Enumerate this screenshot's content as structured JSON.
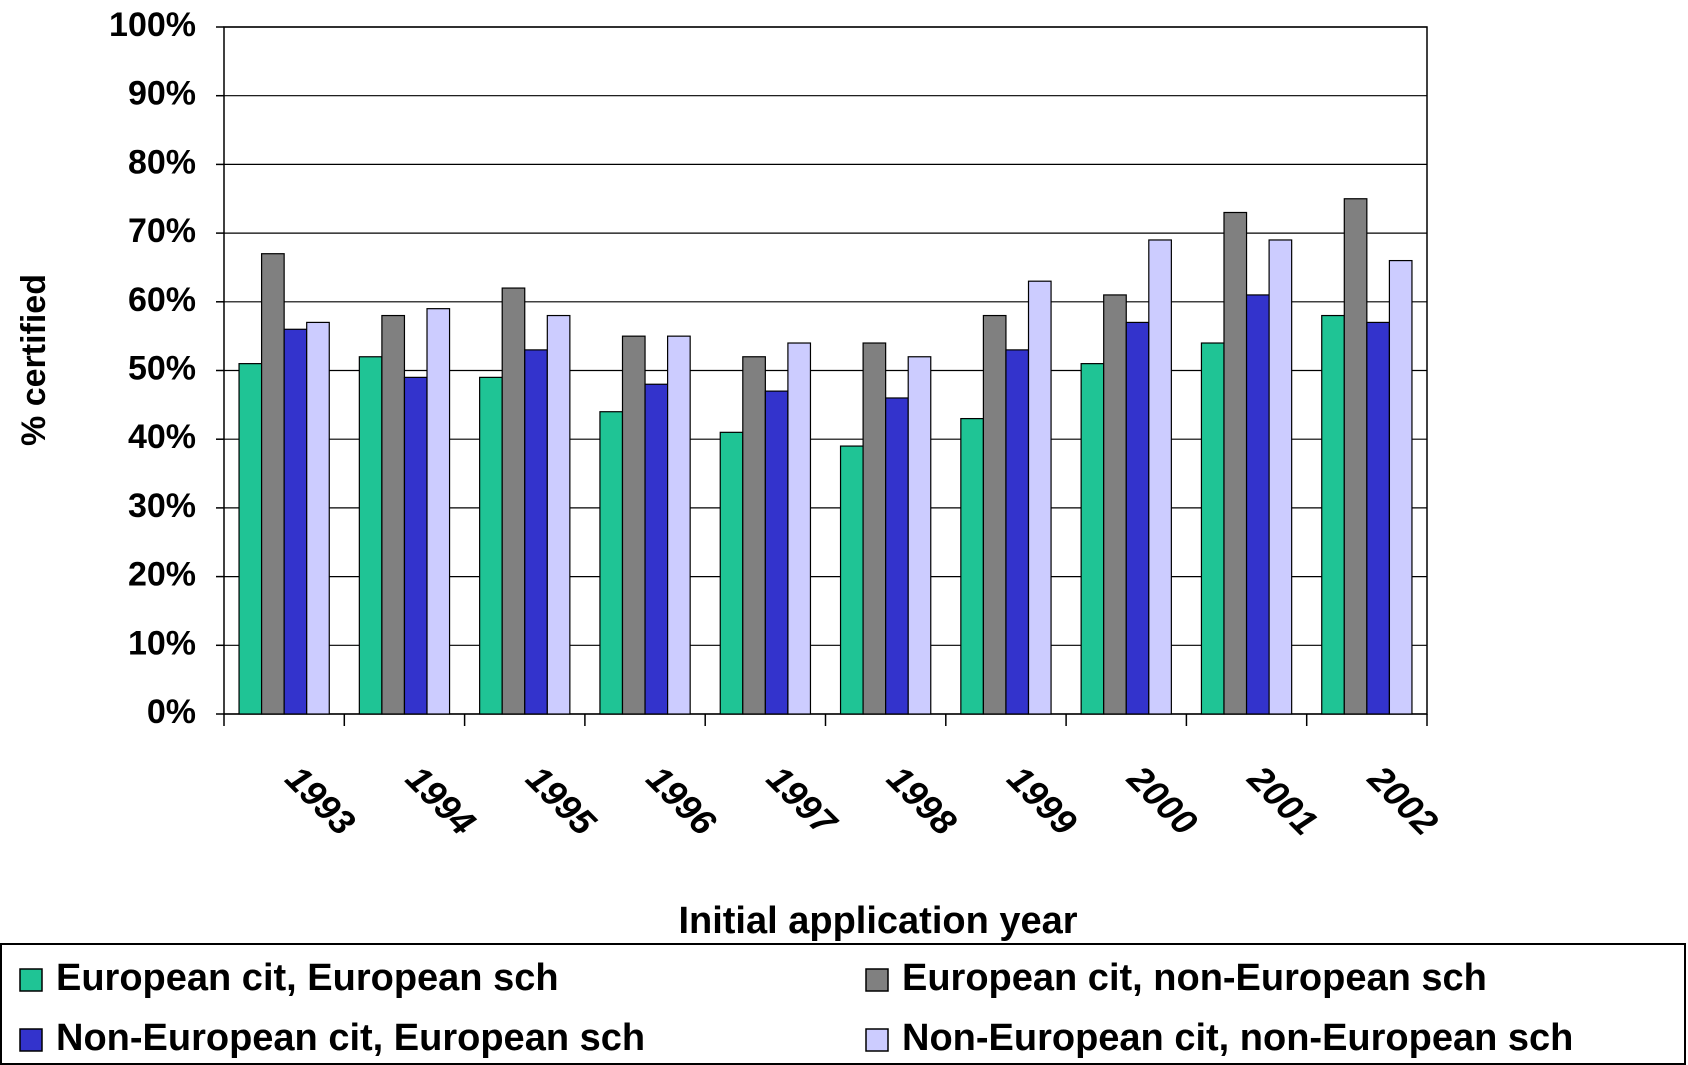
{
  "chart_data": {
    "type": "bar",
    "x_label": "Initial application year",
    "y_label": "% certified",
    "categories": [
      "1993",
      "1994",
      "1995",
      "1996",
      "1997",
      "1998",
      "1999",
      "2000",
      "2001",
      "2002"
    ],
    "series": [
      {
        "name": "European cit, European sch",
        "color": "#1fc495",
        "values": [
          51,
          52,
          49,
          44,
          41,
          39,
          43,
          51,
          54,
          58
        ]
      },
      {
        "name": "European cit, non-European sch",
        "color": "#808080",
        "values": [
          67,
          58,
          62,
          55,
          52,
          54,
          58,
          61,
          73,
          75
        ]
      },
      {
        "name": "Non-European cit, European sch",
        "color": "#3333cc",
        "values": [
          56,
          49,
          53,
          48,
          47,
          46,
          53,
          57,
          61,
          57
        ]
      },
      {
        "name": "Non-European cit, non-European sch",
        "color": "#ccccff",
        "values": [
          57,
          59,
          58,
          55,
          54,
          52,
          63,
          69,
          69,
          66
        ]
      }
    ],
    "ylim": [
      0,
      100
    ],
    "yticks": [
      {
        "value": 0,
        "label": "0%"
      },
      {
        "value": 10,
        "label": "10%"
      },
      {
        "value": 20,
        "label": "20%"
      },
      {
        "value": 30,
        "label": "30%"
      },
      {
        "value": 40,
        "label": "40%"
      },
      {
        "value": 50,
        "label": "50%"
      },
      {
        "value": 60,
        "label": "60%"
      },
      {
        "value": 70,
        "label": "70%"
      },
      {
        "value": 80,
        "label": "80%"
      },
      {
        "value": 90,
        "label": "90%"
      },
      {
        "value": 100,
        "label": "100%"
      }
    ],
    "grid": true
  }
}
